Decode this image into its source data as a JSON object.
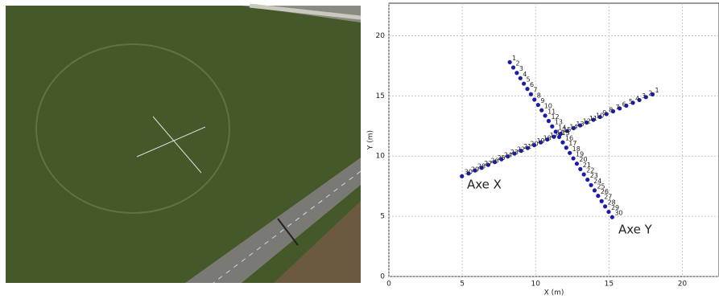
{
  "chart_data": {
    "type": "scatter",
    "xlabel": "X (m)",
    "ylabel": "Y (m)",
    "xlim": [
      0,
      22.5
    ],
    "ylim": [
      0,
      22.7
    ],
    "xticks": [
      0,
      5,
      10,
      15,
      20
    ],
    "yticks": [
      0,
      5,
      10,
      15,
      20
    ],
    "grid": true,
    "series": [
      {
        "name": "Axe X",
        "color": "#1c1ca8",
        "x": [
          17.97,
          17.52,
          17.07,
          16.63,
          16.18,
          15.73,
          15.28,
          14.83,
          14.39,
          13.94,
          13.49,
          13.04,
          12.59,
          12.15,
          11.7,
          11.25,
          10.8,
          10.35,
          9.91,
          9.46,
          9.01,
          8.56,
          8.11,
          7.67,
          7.22,
          6.77,
          6.32,
          5.87,
          5.43,
          4.98
        ],
        "values": [
          15.13,
          14.9,
          14.66,
          14.43,
          14.19,
          13.96,
          13.72,
          13.49,
          13.25,
          13.02,
          12.79,
          12.55,
          12.32,
          12.08,
          11.85,
          11.61,
          11.38,
          11.14,
          10.91,
          10.67,
          10.44,
          10.21,
          9.97,
          9.74,
          9.5,
          9.27,
          9.03,
          8.8,
          8.56,
          8.33
        ],
        "labels": [
          "1",
          "2",
          "3",
          "4",
          "5",
          "6",
          "7",
          "8",
          "9",
          "10",
          "11",
          "12",
          "13",
          "14",
          "15",
          "16",
          "17",
          "18",
          "19",
          "20",
          "21",
          "22",
          "23",
          "24",
          "25",
          "26",
          "27",
          "28",
          "29",
          "30"
        ]
      },
      {
        "name": "Axe Y",
        "color": "#1c1ca8",
        "x": [
          8.24,
          8.48,
          8.72,
          8.96,
          9.2,
          9.44,
          9.68,
          9.92,
          10.17,
          10.41,
          10.65,
          10.89,
          11.13,
          11.37,
          11.61,
          11.85,
          12.09,
          12.33,
          12.57,
          12.81,
          13.05,
          13.29,
          13.54,
          13.78,
          14.02,
          14.26,
          14.5,
          14.74,
          14.98,
          15.22
        ],
        "values": [
          17.8,
          17.36,
          16.91,
          16.47,
          16.02,
          15.58,
          15.14,
          14.69,
          14.25,
          13.81,
          13.36,
          12.92,
          12.47,
          12.03,
          11.59,
          11.14,
          10.7,
          10.26,
          9.81,
          9.37,
          8.92,
          8.48,
          8.04,
          7.59,
          7.15,
          6.7,
          6.26,
          5.82,
          5.37,
          4.93
        ],
        "labels": [
          "1",
          "2",
          "3",
          "4",
          "5",
          "6",
          "7",
          "8",
          "9",
          "10",
          "11",
          "12",
          "13",
          "14",
          "15",
          "16",
          "17",
          "18",
          "19",
          "20",
          "21",
          "22",
          "23",
          "24",
          "25",
          "26",
          "27",
          "28",
          "29",
          "30"
        ]
      }
    ]
  }
}
